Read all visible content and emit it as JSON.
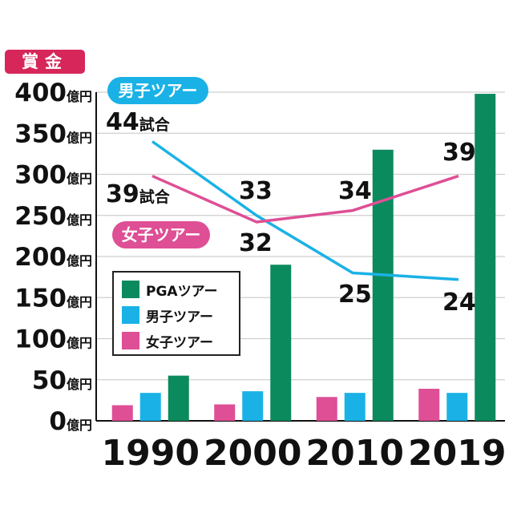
{
  "chart_data": {
    "type": "bar",
    "ylabel": "賞金",
    "categories": [
      "1990",
      "2000",
      "2010",
      "2019"
    ],
    "ylim": [
      0,
      400
    ],
    "yticks": [
      "0億円",
      "50億円",
      "100億円",
      "150億円",
      "200億円",
      "250億円",
      "300億円",
      "350億円",
      "400億円"
    ],
    "series": [
      {
        "name": "女子ツアー",
        "values": [
          19,
          20,
          29,
          39
        ],
        "color": "#de4f95"
      },
      {
        "name": "男子ツアー",
        "values": [
          34,
          36,
          34,
          34
        ],
        "color": "#1ab2e6"
      },
      {
        "name": "PGAツアー",
        "values": [
          55,
          190,
          330,
          398
        ],
        "color": "#0b8a5e"
      }
    ],
    "line_series": [
      {
        "name": "男子ツアー",
        "color": "#1ab2e6",
        "label_values": [
          44,
          33,
          25,
          24
        ],
        "labels": [
          "44試合",
          "33",
          "25",
          "24"
        ],
        "y_levels": [
          340,
          250,
          180,
          172
        ]
      },
      {
        "name": "女子ツアー",
        "color": "#de4f95",
        "label_values": [
          39,
          32,
          34,
          39
        ],
        "labels": [
          "39試合",
          "32",
          "34",
          "39"
        ],
        "y_levels": [
          298,
          242,
          256,
          298
        ]
      }
    ],
    "grid": true,
    "legend": "center-left"
  },
  "badges": {
    "men": "男子ツアー",
    "women": "女子ツアー"
  }
}
